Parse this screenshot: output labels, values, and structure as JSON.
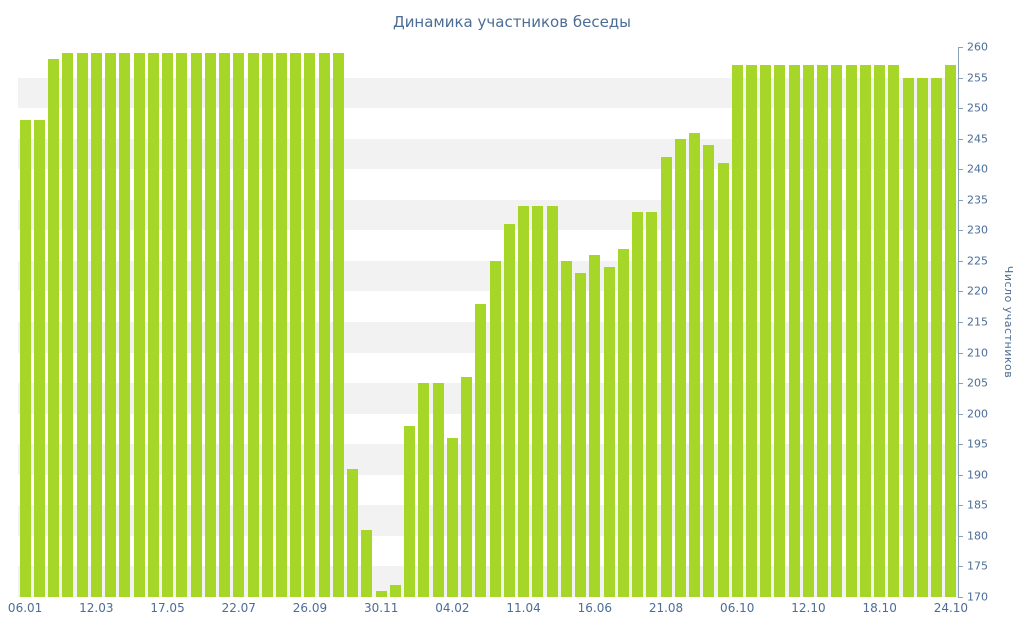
{
  "page": {
    "background": "#ffffff"
  },
  "chart_data": {
    "type": "bar",
    "title": "Динамика участников беседы",
    "xlabel": "",
    "ylabel": "Число участников",
    "ylim": [
      170,
      260
    ],
    "ytick_step": 5,
    "grid": "alternating-horizontal-bands",
    "legend": "none",
    "bar_color": "#a6d628",
    "stripe_color": "#f2f2f2",
    "text_color": "#4b6d96",
    "axis_color": "#8aa0b6",
    "x_tick_labels": [
      {
        "index": 0,
        "label": "06.01"
      },
      {
        "index": 5,
        "label": "12.03"
      },
      {
        "index": 10,
        "label": "17.05"
      },
      {
        "index": 15,
        "label": "22.07"
      },
      {
        "index": 20,
        "label": "26.09"
      },
      {
        "index": 25,
        "label": "30.11"
      },
      {
        "index": 30,
        "label": "04.02"
      },
      {
        "index": 35,
        "label": "11.04"
      },
      {
        "index": 40,
        "label": "16.06"
      },
      {
        "index": 45,
        "label": "21.08"
      },
      {
        "index": 50,
        "label": "06.10"
      },
      {
        "index": 55,
        "label": "12.10"
      },
      {
        "index": 60,
        "label": "18.10"
      },
      {
        "index": 65,
        "label": "24.10"
      }
    ],
    "values": [
      248,
      248,
      258,
      259,
      259,
      259,
      259,
      259,
      259,
      259,
      259,
      259,
      259,
      259,
      259,
      259,
      259,
      259,
      259,
      259,
      259,
      259,
      259,
      191,
      181,
      171,
      172,
      198,
      205,
      205,
      196,
      206,
      218,
      225,
      231,
      234,
      234,
      234,
      225,
      223,
      226,
      224,
      227,
      233,
      233,
      242,
      245,
      246,
      244,
      241,
      257,
      257,
      257,
      257,
      257,
      257,
      257,
      257,
      257,
      257,
      257,
      257,
      255,
      255,
      255,
      257
    ]
  }
}
